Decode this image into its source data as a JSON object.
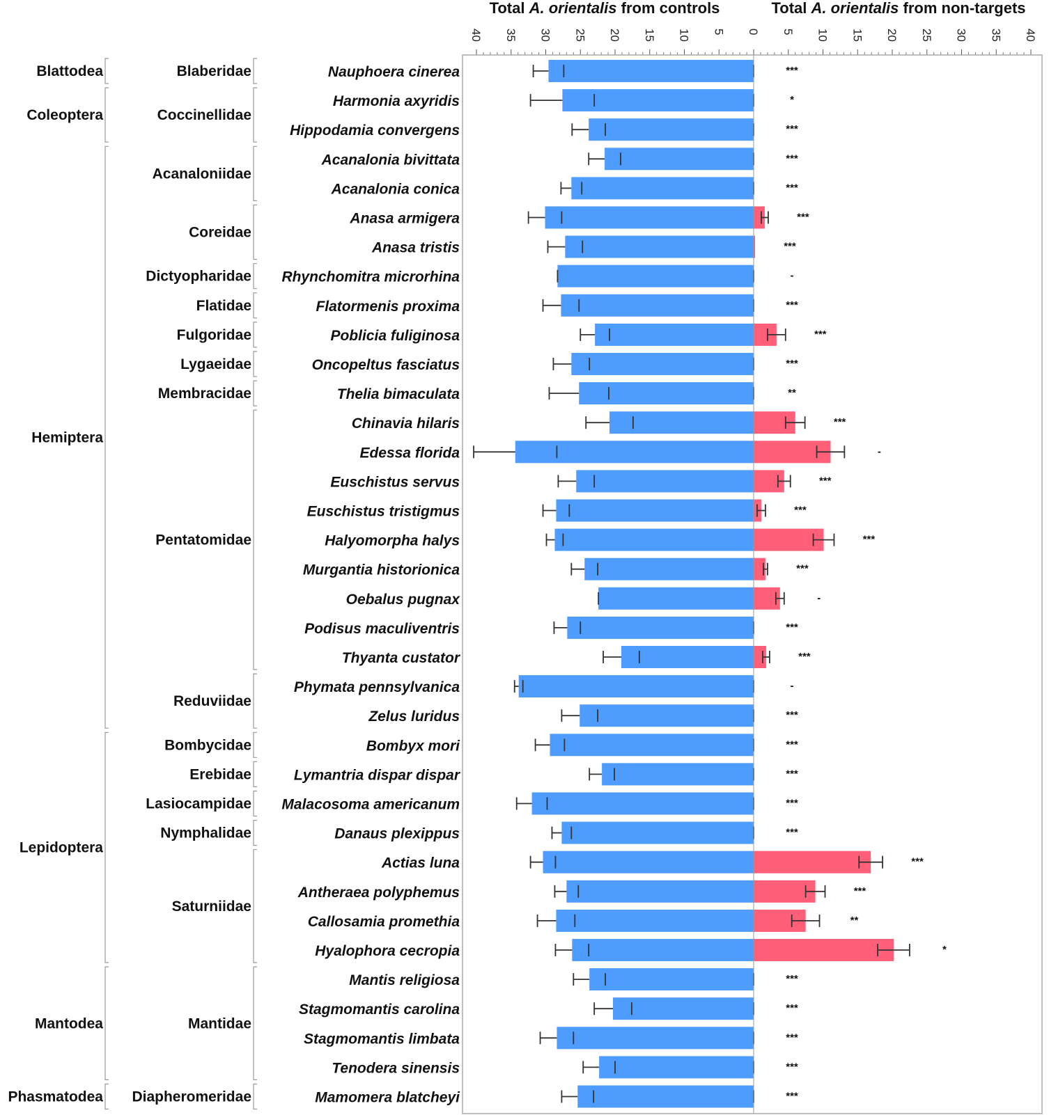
{
  "chart_data": {
    "type": "bar",
    "orientation": "horizontal-diverging",
    "left_title_parts": [
      "Total ",
      "A. orientalis",
      " from controls"
    ],
    "right_title_parts": [
      "Total ",
      "A. orientalis",
      " from non-targets"
    ],
    "left_ticks": [
      "40",
      "35",
      "30",
      "25",
      "20",
      "15",
      "10",
      "5",
      "0"
    ],
    "right_ticks": [
      "5",
      "10",
      "15",
      "20",
      "25",
      "30",
      "35",
      "40"
    ],
    "xlim": [
      0,
      40
    ],
    "colors": {
      "controls": "#4f9cff",
      "nontargets": "#ff5f78",
      "error": "#333333"
    },
    "series_names": [
      "controls",
      "non-targets"
    ],
    "orders": [
      {
        "name": "Blattodea",
        "start": 0,
        "end": 0
      },
      {
        "name": "Coleoptera",
        "start": 1,
        "end": 2
      },
      {
        "name": "Hemiptera",
        "start": 3,
        "end": 22
      },
      {
        "name": "Lepidoptera",
        "start": 23,
        "end": 30
      },
      {
        "name": "Mantodea",
        "start": 31,
        "end": 34
      },
      {
        "name": "Phasmatodea",
        "start": 35,
        "end": 35
      }
    ],
    "families": [
      {
        "name": "Blaberidae",
        "start": 0,
        "end": 0
      },
      {
        "name": "Coccinellidae",
        "start": 1,
        "end": 2
      },
      {
        "name": "Acanaloniidae",
        "start": 3,
        "end": 4
      },
      {
        "name": "Coreidae",
        "start": 5,
        "end": 6
      },
      {
        "name": "Dictyopharidae",
        "start": 7,
        "end": 7
      },
      {
        "name": "Flatidae",
        "start": 8,
        "end": 8
      },
      {
        "name": "Fulgoridae",
        "start": 9,
        "end": 9
      },
      {
        "name": "Lygaeidae",
        "start": 10,
        "end": 10
      },
      {
        "name": "Membracidae",
        "start": 11,
        "end": 11
      },
      {
        "name": "Pentatomidae",
        "start": 12,
        "end": 20
      },
      {
        "name": "Reduviidae",
        "start": 21,
        "end": 22
      },
      {
        "name": "Bombycidae",
        "start": 23,
        "end": 23
      },
      {
        "name": "Erebidae",
        "start": 24,
        "end": 24
      },
      {
        "name": "Lasiocampidae",
        "start": 25,
        "end": 25
      },
      {
        "name": "Nymphalidae",
        "start": 26,
        "end": 26
      },
      {
        "name": "Saturniidae",
        "start": 27,
        "end": 30
      },
      {
        "name": "Mantidae",
        "start": 31,
        "end": 34
      },
      {
        "name": "Diapheromeridae",
        "start": 35,
        "end": 35
      }
    ],
    "species": [
      {
        "name": "Nauphoera cinerea",
        "control": 29.6,
        "control_err": 2.2,
        "nontarget": 0,
        "nontarget_err": 0,
        "sig": "***"
      },
      {
        "name": "Harmonia axyridis",
        "control": 27.6,
        "control_err": 4.6,
        "nontarget": 0,
        "nontarget_err": 0,
        "sig": "*"
      },
      {
        "name": "Hippodamia convergens",
        "control": 23.8,
        "control_err": 2.4,
        "nontarget": 0,
        "nontarget_err": 0,
        "sig": "***"
      },
      {
        "name": "Acanalonia bivittata",
        "control": 21.5,
        "control_err": 2.3,
        "nontarget": 0,
        "nontarget_err": 0,
        "sig": "***"
      },
      {
        "name": "Acanalonia conica",
        "control": 26.3,
        "control_err": 1.5,
        "nontarget": 0,
        "nontarget_err": 0,
        "sig": "***"
      },
      {
        "name": "Anasa armigera",
        "control": 30.1,
        "control_err": 2.4,
        "nontarget": 1.6,
        "nontarget_err": 0.5,
        "sig": "***"
      },
      {
        "name": "Anasa tristis",
        "control": 27.2,
        "control_err": 2.5,
        "nontarget": 0.2,
        "nontarget_err": 0,
        "sig": "***"
      },
      {
        "name": "Rhynchomitra microrhina",
        "control": 28.3,
        "control_err": 0,
        "nontarget": 0,
        "nontarget_err": 0,
        "sig": "-"
      },
      {
        "name": "Flatormenis proxima",
        "control": 27.8,
        "control_err": 2.6,
        "nontarget": 0,
        "nontarget_err": 0,
        "sig": "***"
      },
      {
        "name": "Poblicia fuliginosa",
        "control": 22.9,
        "control_err": 2.1,
        "nontarget": 3.3,
        "nontarget_err": 1.3,
        "sig": "***"
      },
      {
        "name": "Oncopeltus fasciatus",
        "control": 26.3,
        "control_err": 2.6,
        "nontarget": 0,
        "nontarget_err": 0,
        "sig": "***"
      },
      {
        "name": "Thelia bimaculata",
        "control": 25.2,
        "control_err": 4.3,
        "nontarget": 0,
        "nontarget_err": 0,
        "sig": "**"
      },
      {
        "name": "Chinavia hilaris",
        "control": 20.8,
        "control_err": 3.4,
        "nontarget": 6.0,
        "nontarget_err": 1.4,
        "sig": "***"
      },
      {
        "name": "Edessa florida",
        "control": 34.4,
        "control_err": 6.0,
        "nontarget": 11.1,
        "nontarget_err": 2.0,
        "sig": "-"
      },
      {
        "name": "Euschistus servus",
        "control": 25.6,
        "control_err": 2.6,
        "nontarget": 4.4,
        "nontarget_err": 0.9,
        "sig": "***"
      },
      {
        "name": "Euschistus tristigmus",
        "control": 28.5,
        "control_err": 1.9,
        "nontarget": 1.1,
        "nontarget_err": 0.6,
        "sig": "***"
      },
      {
        "name": "Halyomorpha halys",
        "control": 28.7,
        "control_err": 1.2,
        "nontarget": 10.1,
        "nontarget_err": 1.5,
        "sig": "***"
      },
      {
        "name": "Murgantia historionica",
        "control": 24.4,
        "control_err": 1.9,
        "nontarget": 1.7,
        "nontarget_err": 0.3,
        "sig": "***"
      },
      {
        "name": "Oebalus pugnax",
        "control": 22.4,
        "control_err": 0,
        "nontarget": 3.8,
        "nontarget_err": 0.6,
        "sig": "-"
      },
      {
        "name": "Podisus maculiventris",
        "control": 26.9,
        "control_err": 1.9,
        "nontarget": 0,
        "nontarget_err": 0,
        "sig": "***"
      },
      {
        "name": "Thyanta custator",
        "control": 19.1,
        "control_err": 2.6,
        "nontarget": 1.8,
        "nontarget_err": 0.5,
        "sig": "***"
      },
      {
        "name": "Phymata pennsylvanica",
        "control": 33.9,
        "control_err": 0.6,
        "nontarget": 0,
        "nontarget_err": 0,
        "sig": "-"
      },
      {
        "name": "Zelus luridus",
        "control": 25.1,
        "control_err": 2.6,
        "nontarget": 0,
        "nontarget_err": 0,
        "sig": "***"
      },
      {
        "name": "Bombyx mori",
        "control": 29.4,
        "control_err": 2.1,
        "nontarget": 0,
        "nontarget_err": 0,
        "sig": "***"
      },
      {
        "name": "Lymantria dispar dispar",
        "control": 21.9,
        "control_err": 1.8,
        "nontarget": 0,
        "nontarget_err": 0,
        "sig": "***"
      },
      {
        "name": "Malacosoma americanum",
        "control": 32.0,
        "control_err": 2.2,
        "nontarget": 0,
        "nontarget_err": 0,
        "sig": "***"
      },
      {
        "name": "Danaus plexippus",
        "control": 27.7,
        "control_err": 1.4,
        "nontarget": 0,
        "nontarget_err": 0,
        "sig": "***"
      },
      {
        "name": "Actias luna",
        "control": 30.4,
        "control_err": 1.8,
        "nontarget": 16.9,
        "nontarget_err": 1.7,
        "sig": "***"
      },
      {
        "name": "Antheraea polyphemus",
        "control": 27.0,
        "control_err": 1.7,
        "nontarget": 8.9,
        "nontarget_err": 1.4,
        "sig": "***"
      },
      {
        "name": "Callosamia promethia",
        "control": 28.5,
        "control_err": 2.7,
        "nontarget": 7.5,
        "nontarget_err": 2.0,
        "sig": "**"
      },
      {
        "name": "Hyalophora cecropia",
        "control": 26.2,
        "control_err": 2.4,
        "nontarget": 20.2,
        "nontarget_err": 2.3,
        "sig": "*"
      },
      {
        "name": "Mantis religiosa",
        "control": 23.7,
        "control_err": 2.3,
        "nontarget": 0,
        "nontarget_err": 0,
        "sig": "***"
      },
      {
        "name": "Stagmomantis carolina",
        "control": 20.3,
        "control_err": 2.7,
        "nontarget": 0,
        "nontarget_err": 0,
        "sig": "***"
      },
      {
        "name": "Stagmomantis limbata",
        "control": 28.4,
        "control_err": 2.4,
        "nontarget": 0,
        "nontarget_err": 0,
        "sig": "***"
      },
      {
        "name": "Tenodera sinensis",
        "control": 22.3,
        "control_err": 2.3,
        "nontarget": 0,
        "nontarget_err": 0,
        "sig": "***"
      },
      {
        "name": "Mamomera blatcheyi",
        "control": 25.4,
        "control_err": 2.3,
        "nontarget": 0,
        "nontarget_err": 0,
        "sig": "***"
      }
    ]
  }
}
